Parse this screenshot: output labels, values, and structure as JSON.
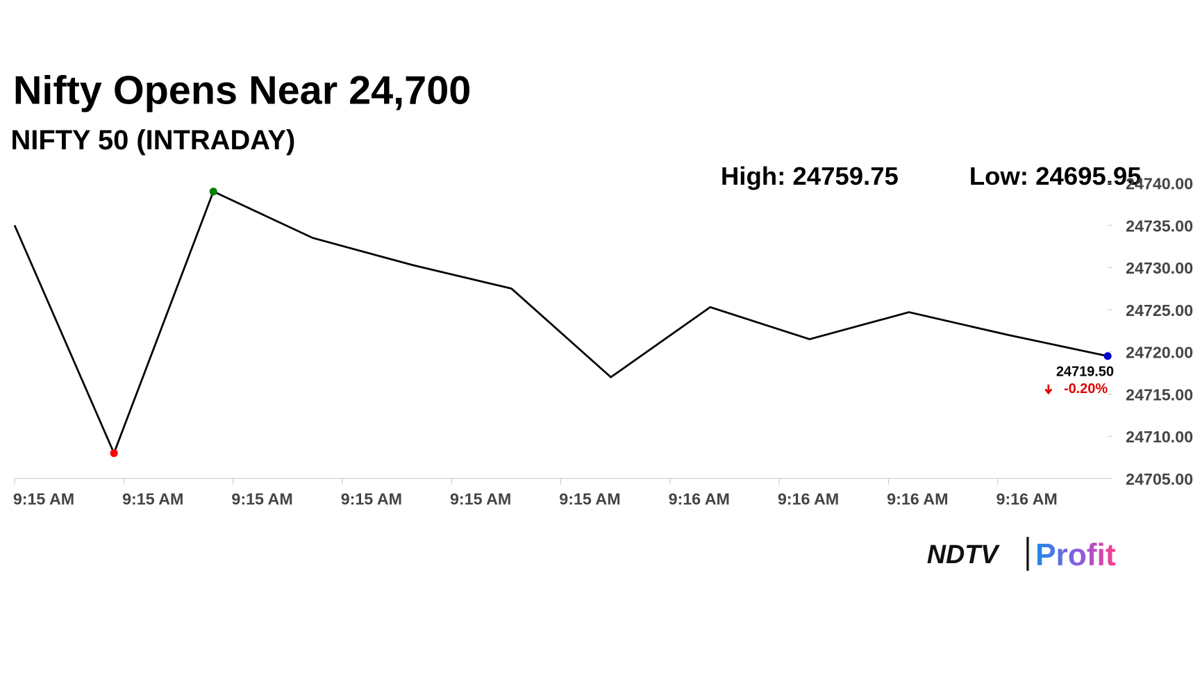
{
  "chart_data": {
    "type": "line",
    "title": "Nifty Opens Near 24,700",
    "subtitle": "NIFTY 50 (INTRADAY)",
    "high_label": "High: 24759.75",
    "low_label": "Low: 24695.95",
    "x_labels": [
      "9:15 AM",
      "9:15 AM",
      "9:15 AM",
      "9:15 AM",
      "9:15 AM",
      "9:15 AM",
      "9:16 AM",
      "9:16 AM",
      "9:16 AM",
      "9:16 AM"
    ],
    "values": [
      24735,
      24708,
      24739,
      24733.5,
      24730.3,
      24727.5,
      24717,
      24725.3,
      24721.5,
      24724.7,
      24722,
      24719.5
    ],
    "value_labels": [
      null,
      null,
      null,
      null,
      null,
      null,
      null,
      null,
      null,
      null,
      null,
      "24719.50"
    ],
    "change": "-0.20%",
    "color": "#000000",
    "min_color": "#ff0000",
    "max_color": "#008000",
    "last_color": "#0000cc",
    "change_color": "#e00000",
    "ylim": [
      24705,
      24740
    ],
    "yticks": [
      {
        "value": 24705,
        "label": "24705.00"
      },
      {
        "value": 24710,
        "label": "24710.00"
      },
      {
        "value": 24715,
        "label": "24715.00"
      },
      {
        "value": 24720,
        "label": "24720.00"
      },
      {
        "value": 24725,
        "label": "24725.00"
      },
      {
        "value": 24730,
        "label": "24730.00"
      },
      {
        "value": 24735,
        "label": "24735.00"
      },
      {
        "value": 24740,
        "label": "24740.00"
      }
    ],
    "grid": false
  },
  "logo": {
    "brand": "NDTV",
    "product": "Profit"
  }
}
